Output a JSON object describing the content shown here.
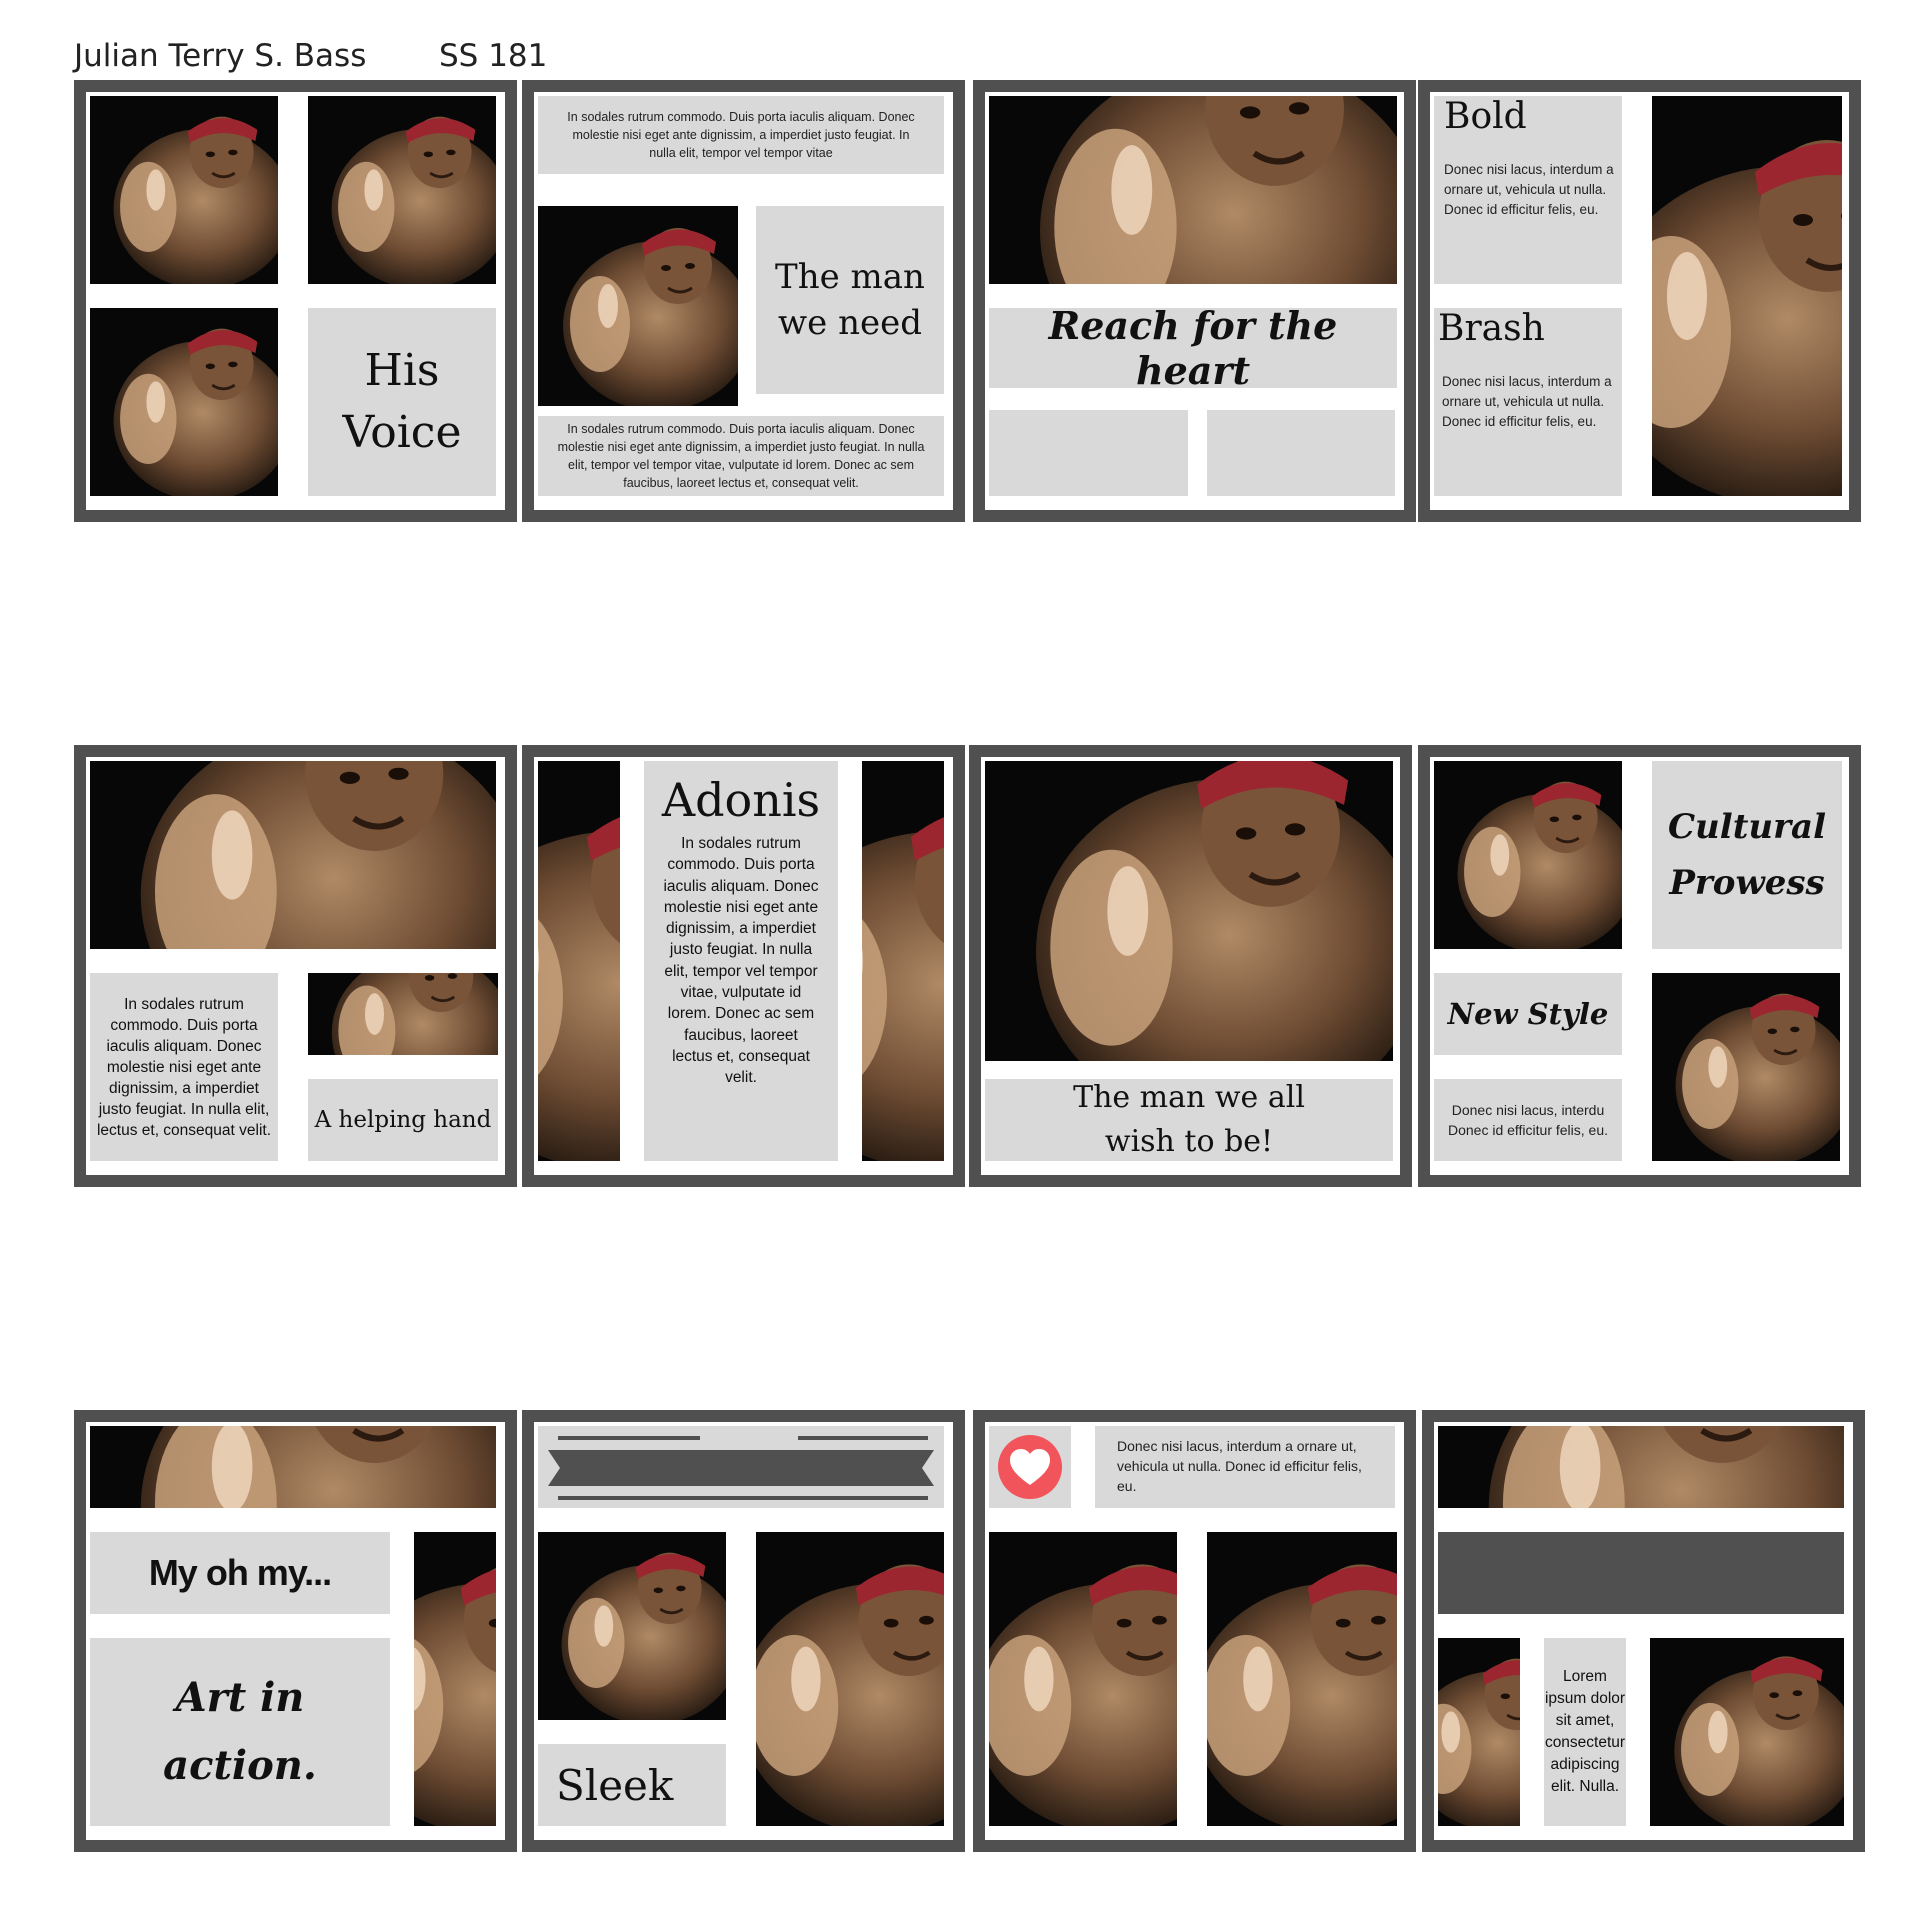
{
  "header": {
    "author": "Julian Terry S. Bass",
    "code": "SS 181"
  },
  "lorem": {
    "p_short": "In sodales rutrum commodo. Duis porta iaculis aliquam. Donec molestie nisi eget ante dignissim, a imperdiet justo feugiat. In nulla elit, tempor vel tempor vitae",
    "p_long": "In sodales rutrum commodo. Duis porta iaculis aliquam. Donec molestie nisi eget ante dignissim, a imperdiet justo feugiat. In nulla elit, tempor vel tempor vitae, vulputate id lorem. Donec ac sem faucibus, laoreet lectus et, consequat velit.",
    "p_helping": "In sodales rutrum commodo. Duis porta iaculis aliquam. Donec molestie nisi eget ante dignissim, a imperdiet justo feugiat. In nulla elit, lectus et, consequat velit.",
    "p_donec": "Donec nisi lacus, interdum a ornare ut, vehicula ut nulla. Donec id efficitur felis, eu.",
    "p_donec_short": "Donec nisi lacus, interdu Donec id efficitur felis, eu.",
    "p_lorem": "Lorem ipsum dolor sit amet, consectetur adipiscing elit. Nulla."
  },
  "panels": {
    "p1": {
      "title": "His Voice"
    },
    "p2": {
      "title": "The man we need"
    },
    "p3": {
      "title": "Reach for the heart"
    },
    "p4": {
      "title_a": "Bold",
      "title_b": "Brash"
    },
    "p5": {
      "caption": "A helping hand"
    },
    "p6": {
      "title": "Adonis"
    },
    "p7": {
      "caption": "The man we all wish to be!"
    },
    "p8": {
      "title": "Cultural Prowess",
      "subtitle": "New Style"
    },
    "p9": {
      "title": "My oh my...",
      "subtitle": "Art in action."
    },
    "p10": {
      "title": "Sleek"
    },
    "p11": {
      "icon": "heart-icon"
    },
    "p12": {}
  }
}
